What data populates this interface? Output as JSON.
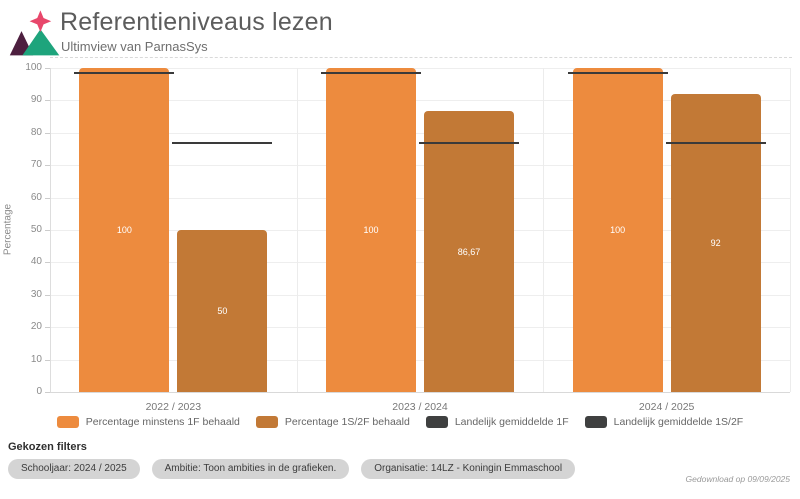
{
  "header": {
    "title": "Referentieniveaus lezen",
    "subtitle": "Ultimview van ParnasSys",
    "logo_colors": {
      "star": "#e8476b",
      "left_triangle": "#4d1f3f",
      "right_triangle": "#1ea47c"
    }
  },
  "chart_data": {
    "type": "bar",
    "title": "Referentieniveaus lezen",
    "xlabel": "",
    "ylabel": "Percentage",
    "ylim": [
      0,
      100
    ],
    "ytick_step": 10,
    "grid": true,
    "legend_position": "bottom",
    "categories": [
      "2022 / 2023",
      "2023 / 2024",
      "2024 / 2025"
    ],
    "series": [
      {
        "name": "Percentage minstens 1F behaald",
        "kind": "bar",
        "color": "#ed8b3e",
        "values": [
          100,
          100,
          100
        ],
        "labels": [
          "100",
          "100",
          "100"
        ]
      },
      {
        "name": "Percentage 1S/2F behaald",
        "kind": "bar",
        "color": "#c27936",
        "values": [
          50,
          86.67,
          92
        ],
        "labels": [
          "50",
          "86,67",
          "92"
        ]
      },
      {
        "name": "Landelijk gemiddelde 1F",
        "kind": "line",
        "color": "#3a3a3a",
        "values": [
          98.5,
          98.5,
          98.5
        ],
        "over_bar_series": 0
      },
      {
        "name": "Landelijk gemiddelde 1S/2F",
        "kind": "line",
        "color": "#3a3a3a",
        "values": [
          77,
          77,
          77
        ],
        "over_bar_series": 1
      }
    ]
  },
  "filters": {
    "heading": "Gekozen filters",
    "pills": [
      "Schooljaar: 2024 / 2025",
      "Ambitie: Toon ambities in de grafieken.",
      "Organisatie: 14LZ - Koningin Emmaschool"
    ]
  },
  "footer": {
    "downloaded": "Gedownload op 09/09/2025"
  }
}
